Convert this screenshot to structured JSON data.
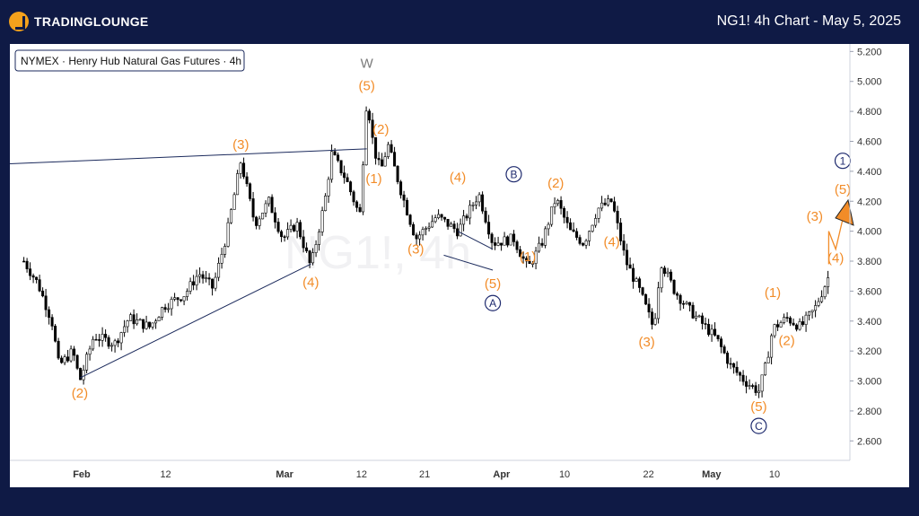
{
  "header": {
    "brand": "TRADINGLOUNGE",
    "title": "NG1! 4h Chart - May 5, 2025"
  },
  "symbol_label": "NYMEX · Henry Hub Natural Gas Futures · 4h",
  "watermark": "NG1!, 4h",
  "colors": {
    "background": "#0f1a45",
    "wave_label": "#f28c28",
    "circle": "#1e2a6e",
    "candle": "#000000",
    "trendline": "#1b2a5c",
    "projection": "#f28c28"
  },
  "chart_data": {
    "type": "candlestick",
    "title": "NG1! 4h Chart - May 5, 2025",
    "x_tick_labels": [
      "Feb",
      "12",
      "Mar",
      "12",
      "21",
      "Apr",
      "10",
      "22",
      "May",
      "10"
    ],
    "y_tick_labels": [
      "2.600",
      "2.800",
      "3.000",
      "3.200",
      "3.400",
      "3.600",
      "3.800",
      "4.000",
      "4.200",
      "4.400",
      "4.600",
      "4.800",
      "5.000",
      "5.200"
    ],
    "ylim": [
      2.47,
      5.25
    ],
    "price_path": [
      {
        "date": "2025-01-23",
        "price": 3.8
      },
      {
        "date": "2025-01-25",
        "price": 3.65
      },
      {
        "date": "2025-01-27",
        "price": 3.4
      },
      {
        "date": "2025-01-28",
        "price": 3.1
      },
      {
        "date": "2025-01-30",
        "price": 3.2
      },
      {
        "date": "2025-01-31",
        "price": 3.0
      },
      {
        "date": "2025-02-02",
        "price": 3.3
      },
      {
        "date": "2025-02-05",
        "price": 3.25
      },
      {
        "date": "2025-02-07",
        "price": 3.42
      },
      {
        "date": "2025-02-10",
        "price": 3.36
      },
      {
        "date": "2025-02-12",
        "price": 3.5
      },
      {
        "date": "2025-02-15",
        "price": 3.58
      },
      {
        "date": "2025-02-17",
        "price": 3.72
      },
      {
        "date": "2025-02-19",
        "price": 3.62
      },
      {
        "date": "2025-02-21",
        "price": 3.98
      },
      {
        "date": "2025-02-23",
        "price": 4.47
      },
      {
        "date": "2025-02-25",
        "price": 4.05
      },
      {
        "date": "2025-02-27",
        "price": 4.2
      },
      {
        "date": "2025-03-01",
        "price": 3.95
      },
      {
        "date": "2025-03-03",
        "price": 4.05
      },
      {
        "date": "2025-03-05",
        "price": 3.76
      },
      {
        "date": "2025-03-07",
        "price": 4.2
      },
      {
        "date": "2025-03-08",
        "price": 4.52
      },
      {
        "date": "2025-03-10",
        "price": 4.35
      },
      {
        "date": "2025-03-12",
        "price": 4.1
      },
      {
        "date": "2025-03-13",
        "price": 4.9
      },
      {
        "date": "2025-03-14",
        "price": 4.55
      },
      {
        "date": "2025-03-15",
        "price": 4.4
      },
      {
        "date": "2025-03-16",
        "price": 4.58
      },
      {
        "date": "2025-03-18",
        "price": 4.25
      },
      {
        "date": "2025-03-20",
        "price": 3.95
      },
      {
        "date": "2025-03-23",
        "price": 4.1
      },
      {
        "date": "2025-03-26",
        "price": 4.0
      },
      {
        "date": "2025-03-29",
        "price": 4.25
      },
      {
        "date": "2025-03-31",
        "price": 3.92
      },
      {
        "date": "2025-04-03",
        "price": 3.95
      },
      {
        "date": "2025-04-05",
        "price": 3.75
      },
      {
        "date": "2025-04-07",
        "price": 3.92
      },
      {
        "date": "2025-04-09",
        "price": 4.22
      },
      {
        "date": "2025-04-11",
        "price": 4.0
      },
      {
        "date": "2025-04-13",
        "price": 3.92
      },
      {
        "date": "2025-04-15",
        "price": 4.15
      },
      {
        "date": "2025-04-17",
        "price": 4.2
      },
      {
        "date": "2025-04-19",
        "price": 3.8
      },
      {
        "date": "2025-04-21",
        "price": 3.6
      },
      {
        "date": "2025-04-23",
        "price": 3.35
      },
      {
        "date": "2025-04-24",
        "price": 3.8
      },
      {
        "date": "2025-04-26",
        "price": 3.6
      },
      {
        "date": "2025-04-28",
        "price": 3.48
      },
      {
        "date": "2025-04-30",
        "price": 3.38
      },
      {
        "date": "2025-05-02",
        "price": 3.28
      },
      {
        "date": "2025-05-04",
        "price": 3.1
      },
      {
        "date": "2025-05-06",
        "price": 3.0
      },
      {
        "date": "2025-05-08",
        "price": 2.93
      },
      {
        "date": "2025-05-09",
        "price": 3.1
      },
      {
        "date": "2025-05-10",
        "price": 3.35
      },
      {
        "date": "2025-05-12",
        "price": 3.42
      },
      {
        "date": "2025-05-14",
        "price": 3.36
      },
      {
        "date": "2025-05-16",
        "price": 3.48
      },
      {
        "date": "2025-05-18",
        "price": 3.7
      }
    ],
    "wave_labels": [
      {
        "text": "(2)",
        "date": "2025-01-31",
        "price": 2.92,
        "style": "paren"
      },
      {
        "text": "(3)",
        "date": "2025-02-23",
        "price": 4.58,
        "style": "paren"
      },
      {
        "text": "(4)",
        "date": "2025-03-05",
        "price": 3.66,
        "style": "paren"
      },
      {
        "text": "W",
        "date": "2025-03-13",
        "price": 5.12,
        "style": "grey"
      },
      {
        "text": "(5)",
        "date": "2025-03-13",
        "price": 4.97,
        "style": "paren"
      },
      {
        "text": "(2)",
        "date": "2025-03-15",
        "price": 4.68,
        "style": "paren"
      },
      {
        "text": "(1)",
        "date": "2025-03-14",
        "price": 4.35,
        "style": "paren"
      },
      {
        "text": "(3)",
        "date": "2025-03-20",
        "price": 3.88,
        "style": "paren"
      },
      {
        "text": "(4)",
        "date": "2025-03-26",
        "price": 4.36,
        "style": "paren"
      },
      {
        "text": "(5)",
        "date": "2025-03-31",
        "price": 3.65,
        "style": "paren"
      },
      {
        "text": "A",
        "date": "2025-03-31",
        "price": 3.52,
        "style": "circle"
      },
      {
        "text": "B",
        "date": "2025-04-03",
        "price": 4.38,
        "style": "circle"
      },
      {
        "text": "(1)",
        "date": "2025-04-05",
        "price": 3.83,
        "style": "paren"
      },
      {
        "text": "(2)",
        "date": "2025-04-09",
        "price": 4.32,
        "style": "paren"
      },
      {
        "text": "(4)",
        "date": "2025-04-17",
        "price": 3.93,
        "style": "paren"
      },
      {
        "text": "(3)",
        "date": "2025-04-22",
        "price": 3.26,
        "style": "paren"
      },
      {
        "text": "(5)",
        "date": "2025-05-08",
        "price": 2.83,
        "style": "paren"
      },
      {
        "text": "C",
        "date": "2025-05-08",
        "price": 2.7,
        "style": "circle"
      },
      {
        "text": "(1)",
        "date": "2025-05-10",
        "price": 3.59,
        "style": "paren"
      },
      {
        "text": "(2)",
        "date": "2025-05-12",
        "price": 3.27,
        "style": "paren"
      },
      {
        "text": "(3)",
        "date": "2025-05-16",
        "price": 4.1,
        "style": "paren"
      },
      {
        "text": "(4)",
        "date": "2025-05-19",
        "price": 3.82,
        "style": "paren"
      },
      {
        "text": "(5)",
        "date": "2025-05-20",
        "price": 4.28,
        "style": "paren"
      },
      {
        "text": "1",
        "date": "2025-05-20",
        "price": 4.47,
        "style": "circle"
      }
    ],
    "trendlines": [
      {
        "from": {
          "date": "2025-01-21",
          "price": 4.45
        },
        "to": {
          "date": "2025-03-13",
          "price": 4.55
        }
      },
      {
        "from": {
          "date": "2025-01-31",
          "price": 3.02
        },
        "to": {
          "date": "2025-03-05",
          "price": 3.78
        }
      },
      {
        "from": {
          "date": "2025-03-26",
          "price": 4.0
        },
        "to": {
          "date": "2025-03-31",
          "price": 3.88
        }
      },
      {
        "from": {
          "date": "2025-03-24",
          "price": 3.84
        },
        "to": {
          "date": "2025-03-31",
          "price": 3.74
        }
      }
    ],
    "projection": [
      {
        "date": "2025-05-18",
        "price": 3.78
      },
      {
        "date": "2025-05-18",
        "price": 4.0
      },
      {
        "date": "2025-05-19",
        "price": 3.88
      },
      {
        "date": "2025-05-20",
        "price": 4.08
      }
    ],
    "triangle": {
      "date": "2025-05-20",
      "price": 4.1
    }
  }
}
